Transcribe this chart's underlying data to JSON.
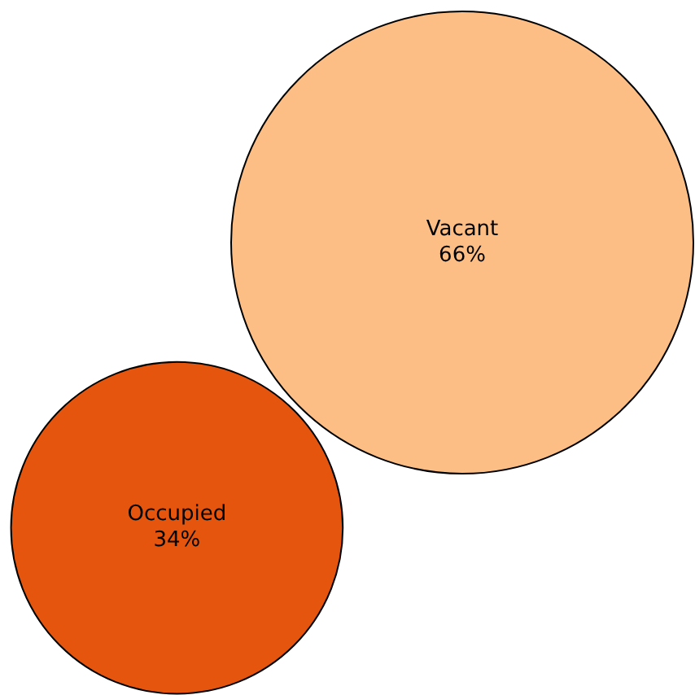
{
  "chart_data": {
    "type": "other",
    "categories": [
      "Occupied",
      "Vacant"
    ],
    "values": [
      34,
      66
    ],
    "value_labels": [
      "34%",
      "66%"
    ],
    "colors": [
      "#e6550d",
      "#fdbe85"
    ]
  }
}
